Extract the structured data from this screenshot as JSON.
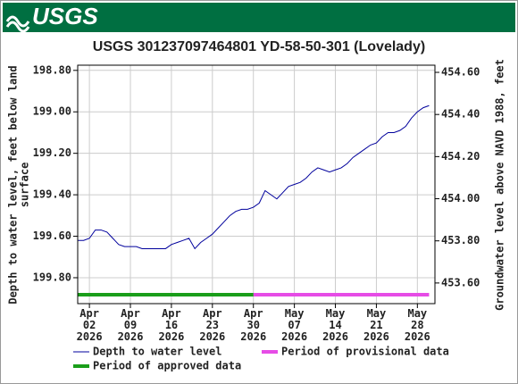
{
  "header": {
    "logo": "USGS"
  },
  "chart_data": {
    "type": "line",
    "title": "USGS 301237097464801 YD-58-50-301 (Lovelady)",
    "ylabel": [
      "Depth to water level, feet below land",
      "surface"
    ],
    "y2label": "Groundwater level above NAVD 1988, feet",
    "x": [
      "2026-03-31",
      "2026-04-01",
      "2026-04-02",
      "2026-04-03",
      "2026-04-04",
      "2026-04-05",
      "2026-04-06",
      "2026-04-07",
      "2026-04-08",
      "2026-04-09",
      "2026-04-10",
      "2026-04-11",
      "2026-04-12",
      "2026-04-13",
      "2026-04-14",
      "2026-04-15",
      "2026-04-16",
      "2026-04-17",
      "2026-04-18",
      "2026-04-19",
      "2026-04-20",
      "2026-04-21",
      "2026-04-22",
      "2026-04-23",
      "2026-04-24",
      "2026-04-25",
      "2026-04-26",
      "2026-04-27",
      "2026-04-28",
      "2026-04-29",
      "2026-04-30",
      "2026-05-01",
      "2026-05-02",
      "2026-05-03",
      "2026-05-04",
      "2026-05-05",
      "2026-05-06",
      "2026-05-07",
      "2026-05-08",
      "2026-05-09",
      "2026-05-10",
      "2026-05-11",
      "2026-05-12",
      "2026-05-13",
      "2026-05-14",
      "2026-05-15",
      "2026-05-16",
      "2026-05-17",
      "2026-05-18",
      "2026-05-19",
      "2026-05-20",
      "2026-05-21",
      "2026-05-22",
      "2026-05-23",
      "2026-05-24",
      "2026-05-25",
      "2026-05-26",
      "2026-05-27",
      "2026-05-28",
      "2026-05-29",
      "2026-05-30"
    ],
    "series": [
      {
        "name": "Depth to water level",
        "color": "#00009c",
        "values": [
          199.62,
          199.62,
          199.61,
          199.57,
          199.57,
          199.58,
          199.61,
          199.64,
          199.65,
          199.65,
          199.65,
          199.66,
          199.66,
          199.66,
          199.66,
          199.66,
          199.64,
          199.63,
          199.62,
          199.61,
          199.66,
          199.63,
          199.61,
          199.59,
          199.56,
          199.53,
          199.5,
          199.48,
          199.47,
          199.47,
          199.46,
          199.44,
          199.38,
          199.4,
          199.42,
          199.39,
          199.36,
          199.35,
          199.34,
          199.32,
          199.29,
          199.27,
          199.28,
          199.29,
          199.28,
          199.27,
          199.25,
          199.22,
          199.2,
          199.18,
          199.16,
          199.15,
          199.12,
          199.1,
          199.1,
          199.09,
          199.07,
          199.03,
          199.0,
          198.98,
          198.97
        ]
      }
    ],
    "periods": [
      {
        "name": "Period of provisional data",
        "color": "#e64ce6",
        "start": "2026-04-30",
        "end": "2026-05-30"
      },
      {
        "name": "Period of approved data",
        "color": "#1a9e1a",
        "start": "2026-03-31",
        "end": "2026-04-30"
      }
    ],
    "xlim": [
      "2026-03-31",
      "2026-05-31"
    ],
    "xticks": [
      {
        "value": "2026-04-02",
        "label": "Apr 02 2026"
      },
      {
        "value": "2026-04-09",
        "label": "Apr 09 2026"
      },
      {
        "value": "2026-04-16",
        "label": "Apr 16 2026"
      },
      {
        "value": "2026-04-23",
        "label": "Apr 23 2026"
      },
      {
        "value": "2026-04-30",
        "label": "Apr 30 2026"
      },
      {
        "value": "2026-05-07",
        "label": "May 07 2026"
      },
      {
        "value": "2026-05-14",
        "label": "May 14 2026"
      },
      {
        "value": "2026-05-21",
        "label": "May 21 2026"
      },
      {
        "value": "2026-05-28",
        "label": "May 28 2026"
      }
    ],
    "ylim": [
      199.925,
      198.775
    ],
    "yticks": [
      {
        "value": 198.8,
        "label": "198.80"
      },
      {
        "value": 199.0,
        "label": "199.00"
      },
      {
        "value": 199.2,
        "label": "199.20"
      },
      {
        "value": 199.4,
        "label": "199.40"
      },
      {
        "value": 199.6,
        "label": "199.60"
      },
      {
        "value": 199.8,
        "label": "199.80"
      }
    ],
    "y2lim": [
      453.502,
      454.634
    ],
    "y2ticks": [
      {
        "value": 453.6,
        "label": "453.60"
      },
      {
        "value": 453.8,
        "label": "453.80"
      },
      {
        "value": 454.0,
        "label": "454.00"
      },
      {
        "value": 454.2,
        "label": "454.20"
      },
      {
        "value": 454.4,
        "label": "454.40"
      },
      {
        "value": 454.6,
        "label": "454.60"
      }
    ],
    "grid": true
  }
}
